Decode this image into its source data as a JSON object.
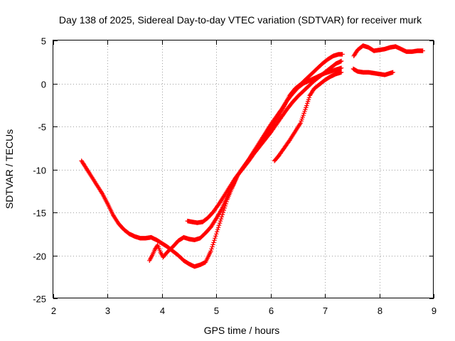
{
  "chart_data": {
    "type": "scatter",
    "title": "Day 138 of 2025, Sidereal Day-to-day VTEC variation (SDTVAR) for receiver murk",
    "xlabel": "GPS time / hours",
    "ylabel": "SDTVAR / TECUs",
    "xlim": [
      2,
      9
    ],
    "ylim": [
      -25,
      5
    ],
    "xticks": [
      2,
      3,
      4,
      5,
      6,
      7,
      8,
      9
    ],
    "yticks": [
      -25,
      -20,
      -15,
      -10,
      -5,
      0,
      5
    ],
    "grid": true,
    "marker": "plus",
    "color": "#ff0000",
    "series": [
      {
        "x": [
          2.52,
          2.6,
          2.7,
          2.8,
          2.9,
          3.0,
          3.1,
          3.2,
          3.3,
          3.4,
          3.5,
          3.6,
          3.7,
          3.8,
          3.9,
          4.0,
          4.1,
          4.2,
          4.3,
          4.4,
          4.5,
          4.6,
          4.7,
          4.8,
          4.9,
          5.0,
          5.1,
          5.2,
          5.3,
          5.4,
          5.5,
          5.6,
          5.7,
          5.8,
          5.9,
          6.0,
          6.1,
          6.2,
          6.3,
          6.4,
          6.5,
          6.6,
          6.7,
          6.8,
          6.9,
          7.0,
          7.1,
          7.2,
          7.3
        ],
        "y": [
          -9.0,
          -9.8,
          -10.8,
          -11.8,
          -12.8,
          -14.0,
          -15.3,
          -16.3,
          -17.0,
          -17.5,
          -17.8,
          -18.0,
          -18.0,
          -17.9,
          -18.2,
          -18.6,
          -19.0,
          -19.5,
          -20.0,
          -20.6,
          -21.0,
          -21.3,
          -21.1,
          -20.8,
          -19.5,
          -17.5,
          -15.5,
          -13.5,
          -12.0,
          -10.6,
          -9.8,
          -9.0,
          -8.1,
          -7.3,
          -6.5,
          -5.7,
          -4.8,
          -3.9,
          -3.0,
          -2.2,
          -1.5,
          -0.9,
          -0.3,
          0.3,
          0.8,
          1.3,
          1.8,
          2.3,
          2.6
        ]
      },
      {
        "x": [
          3.77,
          3.82,
          3.87,
          3.92,
          3.97,
          4.02,
          4.1,
          4.2,
          4.3,
          4.4,
          4.5,
          4.6,
          4.7,
          4.8,
          4.9,
          5.0,
          5.1,
          5.2,
          5.3,
          5.4,
          5.5,
          5.6,
          5.7,
          5.8,
          5.9,
          6.0,
          6.1,
          6.2,
          6.3,
          6.4,
          6.5,
          6.6,
          6.7,
          6.8,
          6.9,
          7.0,
          7.1,
          7.2,
          7.3
        ],
        "y": [
          -20.6,
          -20.0,
          -19.3,
          -18.8,
          -19.6,
          -20.2,
          -19.6,
          -19.0,
          -18.3,
          -17.9,
          -18.1,
          -18.2,
          -18.0,
          -17.4,
          -16.7,
          -15.7,
          -14.6,
          -13.2,
          -11.9,
          -10.6,
          -9.7,
          -8.8,
          -7.8,
          -6.8,
          -5.8,
          -4.8,
          -3.9,
          -3.0,
          -2.0,
          -1.2,
          -0.5,
          0.0,
          0.3,
          0.6,
          0.9,
          1.2,
          1.4,
          1.6,
          1.8
        ]
      },
      {
        "x": [
          4.47,
          4.55,
          4.65,
          4.75,
          4.85,
          4.95,
          5.05,
          5.15,
          5.25,
          5.35,
          5.45,
          5.55,
          5.65,
          5.75,
          5.85,
          5.95,
          6.05,
          6.15,
          6.25,
          6.35,
          6.45,
          6.55,
          6.65,
          6.75,
          6.85,
          6.95,
          7.05,
          7.15,
          7.25,
          7.32
        ],
        "y": [
          -16.0,
          -16.1,
          -16.2,
          -16.1,
          -15.6,
          -14.9,
          -14.0,
          -13.0,
          -12.0,
          -11.0,
          -10.2,
          -9.3,
          -8.4,
          -7.5,
          -6.6,
          -5.7,
          -4.7,
          -3.7,
          -2.6,
          -1.4,
          -0.6,
          -0.1,
          0.5,
          1.1,
          1.7,
          2.3,
          2.8,
          3.2,
          3.4,
          3.4
        ]
      },
      {
        "x": [
          6.07,
          6.15,
          6.25,
          6.35,
          6.45,
          6.55,
          6.65,
          6.72,
          6.8,
          6.9,
          7.0,
          7.1,
          7.2,
          7.3
        ],
        "y": [
          -9.0,
          -8.4,
          -7.5,
          -6.6,
          -5.6,
          -4.6,
          -2.8,
          -1.4,
          -0.6,
          -0.1,
          0.4,
          0.8,
          1.1,
          1.3
        ]
      },
      {
        "x": [
          7.53,
          7.6,
          7.7,
          7.8,
          7.9,
          8.0,
          8.1,
          8.2,
          8.3,
          8.4,
          8.5,
          8.6,
          8.7,
          8.8
        ],
        "y": [
          3.2,
          3.9,
          4.4,
          4.2,
          3.8,
          3.9,
          4.0,
          4.2,
          4.3,
          4.0,
          3.7,
          3.7,
          3.8,
          3.8
        ]
      },
      {
        "x": [
          7.52,
          7.6,
          7.7,
          7.8,
          7.9,
          8.0,
          8.1,
          8.2,
          8.25
        ],
        "y": [
          1.7,
          1.4,
          1.3,
          1.3,
          1.2,
          1.1,
          1.0,
          1.2,
          1.3
        ]
      }
    ]
  }
}
